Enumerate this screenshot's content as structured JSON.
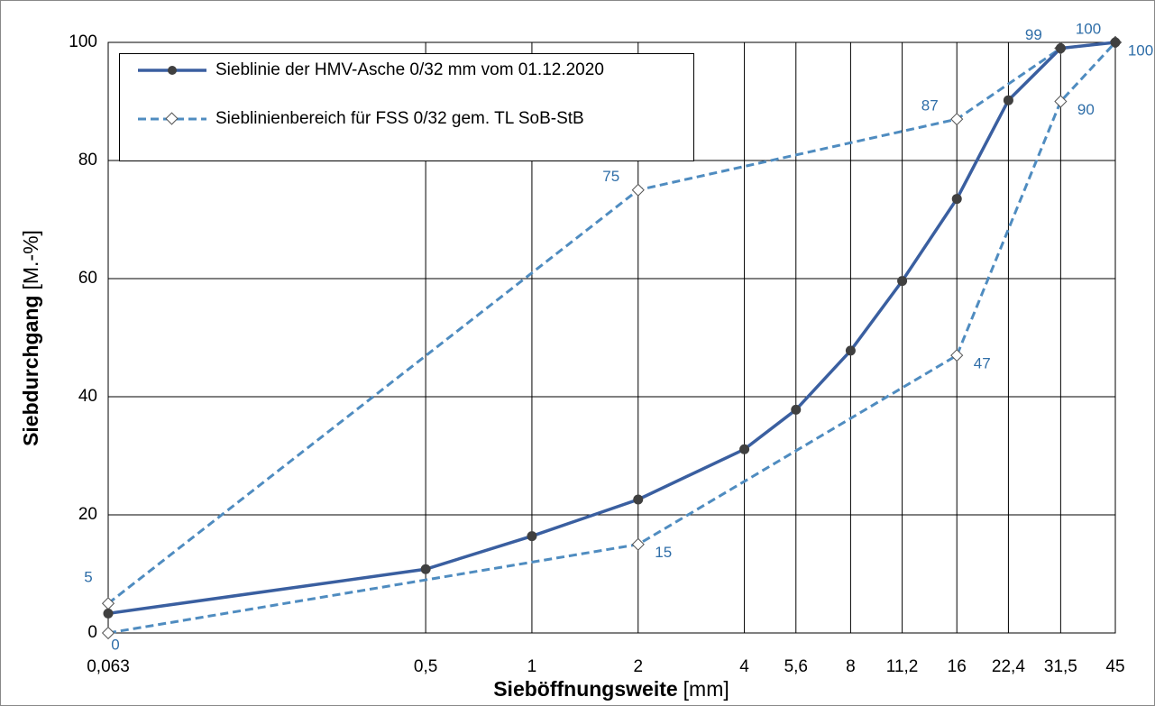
{
  "chart_data": {
    "type": "line",
    "x_label": "Sieböffnungsweite",
    "x_unit": "[mm]",
    "y_label": "Siebdurchgang",
    "y_unit": "[M.-%]",
    "x_scale": "log",
    "grid": true,
    "legend": "upper left",
    "xlim": [
      0.063,
      45
    ],
    "ylim": [
      0,
      100
    ],
    "xticks": [
      {
        "value": 0.063,
        "label": "0,063"
      },
      {
        "value": 0.5,
        "label": "0,5"
      },
      1,
      2,
      4,
      {
        "value": 5.6,
        "label": "5,6"
      },
      8,
      {
        "value": 11.2,
        "label": "11,2"
      },
      16,
      {
        "value": 22.4,
        "label": "22,4"
      },
      {
        "value": 31.5,
        "label": "31,5"
      },
      45
    ],
    "yticks": [
      0,
      20,
      40,
      60,
      80,
      100
    ],
    "series": [
      {
        "name": "Sieblinie der HMV-Asche 0/32 mm vom 01.12.2020",
        "color": "#3a5fa0",
        "x": [
          0.063,
          0.5,
          1,
          2,
          4,
          5.6,
          8,
          11.2,
          16,
          22.4,
          31.5,
          45
        ],
        "values": [
          3.3,
          10.8,
          16.4,
          22.6,
          31.1,
          37.8,
          47.8,
          59.6,
          73.5,
          90.2,
          99,
          100
        ]
      },
      {
        "name": "Sieblinienbereich für FSS 0/32 gem. TL SoB-StB",
        "color": "#4f8cc0",
        "upper": {
          "x": [
            0.063,
            2,
            16,
            31.5,
            45
          ],
          "values": [
            5,
            75,
            87,
            99,
            100
          ]
        },
        "lower": {
          "x": [
            0.063,
            2,
            16,
            31.5,
            45
          ],
          "values": [
            0,
            15,
            47,
            90,
            100
          ]
        }
      }
    ]
  }
}
